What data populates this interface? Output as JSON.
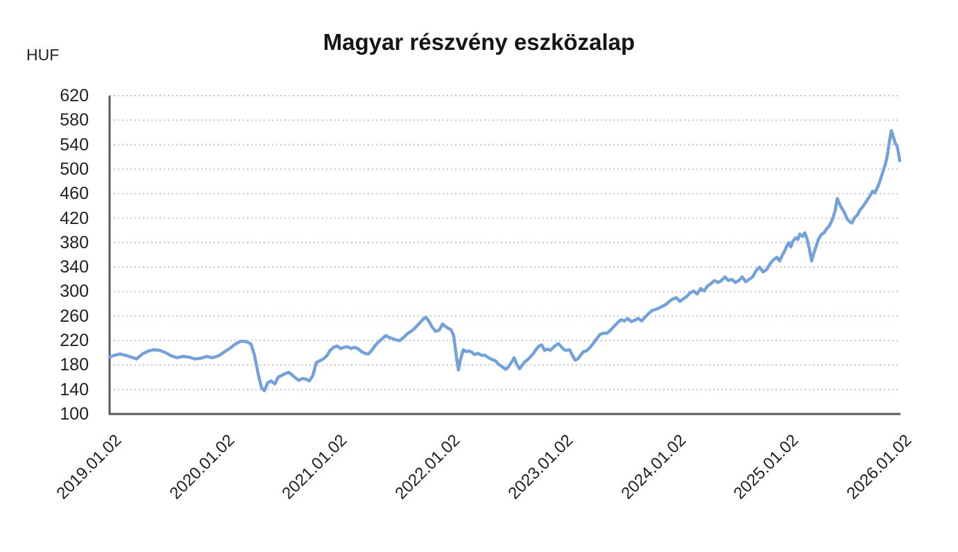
{
  "title": "Magyar részvény eszközalap",
  "y_axis": {
    "unit_label": "HUF",
    "ticks": [
      620,
      580,
      540,
      500,
      460,
      420,
      380,
      340,
      300,
      260,
      220,
      180,
      140,
      100
    ]
  },
  "x_axis": {
    "ticks": [
      "2019.01.02",
      "2020.01.02",
      "2021.01.02",
      "2022.01.02",
      "2023.01.02",
      "2024.01.02",
      "2025.01.02",
      "2026.01.02"
    ]
  },
  "colors": {
    "line": "#74A1D8",
    "grid": "#c4c4c4",
    "axis": "#595959",
    "text": "#1f1f1f"
  },
  "chart_data": {
    "type": "line",
    "title": "Magyar részvény eszközalap",
    "xlabel": "",
    "ylabel": "HUF",
    "ylim": [
      100,
      620
    ],
    "xlim": [
      2019.0,
      2026.08
    ],
    "grid": "horizontal-dotted",
    "legend_position": "none",
    "x_tick_labels": [
      "2019.01.02",
      "2020.01.02",
      "2021.01.02",
      "2022.01.02",
      "2023.01.02",
      "2024.01.02",
      "2025.01.02",
      "2026.01.02"
    ],
    "y_tick_values": [
      100,
      140,
      180,
      220,
      260,
      300,
      340,
      380,
      420,
      460,
      500,
      540,
      580,
      620
    ],
    "series": [
      {
        "name": "Magyar részvény eszközalap (HUF)",
        "color": "#74A1D8",
        "points": [
          [
            2019.0,
            193
          ],
          [
            2019.043,
            196
          ],
          [
            2019.092,
            198
          ],
          [
            2019.141,
            196
          ],
          [
            2019.191,
            193
          ],
          [
            2019.24,
            190
          ],
          [
            2019.289,
            198
          ],
          [
            2019.344,
            203
          ],
          [
            2019.393,
            205
          ],
          [
            2019.443,
            204
          ],
          [
            2019.498,
            200
          ],
          [
            2019.547,
            195
          ],
          [
            2019.596,
            192
          ],
          [
            2019.651,
            194
          ],
          [
            2019.701,
            193
          ],
          [
            2019.756,
            190
          ],
          [
            2019.805,
            191
          ],
          [
            2019.86,
            194
          ],
          [
            2019.91,
            192
          ],
          [
            2019.965,
            195
          ],
          [
            2020.014,
            201
          ],
          [
            2020.063,
            207
          ],
          [
            2020.112,
            214
          ],
          [
            2020.162,
            219
          ],
          [
            2020.217,
            218
          ],
          [
            2020.254,
            214
          ],
          [
            2020.284,
            196
          ],
          [
            2020.315,
            166
          ],
          [
            2020.346,
            143
          ],
          [
            2020.371,
            138
          ],
          [
            2020.401,
            151
          ],
          [
            2020.432,
            154
          ],
          [
            2020.463,
            149
          ],
          [
            2020.493,
            160
          ],
          [
            2020.524,
            163
          ],
          [
            2020.555,
            166
          ],
          [
            2020.586,
            168
          ],
          [
            2020.616,
            164
          ],
          [
            2020.647,
            159
          ],
          [
            2020.678,
            155
          ],
          [
            2020.709,
            158
          ],
          [
            2020.739,
            157
          ],
          [
            2020.77,
            154
          ],
          [
            2020.801,
            163
          ],
          [
            2020.831,
            184
          ],
          [
            2020.862,
            187
          ],
          [
            2020.893,
            190
          ],
          [
            2020.924,
            195
          ],
          [
            2020.954,
            204
          ],
          [
            2020.985,
            209
          ],
          [
            2021.016,
            211
          ],
          [
            2021.047,
            207
          ],
          [
            2021.077,
            209
          ],
          [
            2021.108,
            210
          ],
          [
            2021.139,
            207
          ],
          [
            2021.17,
            209
          ],
          [
            2021.2,
            207
          ],
          [
            2021.231,
            202
          ],
          [
            2021.262,
            199
          ],
          [
            2021.292,
            198
          ],
          [
            2021.323,
            204
          ],
          [
            2021.354,
            212
          ],
          [
            2021.385,
            218
          ],
          [
            2021.415,
            223
          ],
          [
            2021.446,
            228
          ],
          [
            2021.477,
            225
          ],
          [
            2021.508,
            223
          ],
          [
            2021.538,
            221
          ],
          [
            2021.569,
            220
          ],
          [
            2021.6,
            224
          ],
          [
            2021.63,
            230
          ],
          [
            2021.661,
            234
          ],
          [
            2021.692,
            238
          ],
          [
            2021.723,
            244
          ],
          [
            2021.753,
            250
          ],
          [
            2021.784,
            256
          ],
          [
            2021.802,
            258
          ],
          [
            2021.827,
            252
          ],
          [
            2021.858,
            242
          ],
          [
            2021.888,
            235
          ],
          [
            2021.919,
            237
          ],
          [
            2021.95,
            247
          ],
          [
            2021.975,
            243
          ],
          [
            2022.0,
            240
          ],
          [
            2022.024,
            238
          ],
          [
            2022.048,
            228
          ],
          [
            2022.073,
            193
          ],
          [
            2022.091,
            172
          ],
          [
            2022.11,
            190
          ],
          [
            2022.134,
            205
          ],
          [
            2022.159,
            202
          ],
          [
            2022.184,
            203
          ],
          [
            2022.208,
            201
          ],
          [
            2022.233,
            197
          ],
          [
            2022.264,
            199
          ],
          [
            2022.294,
            196
          ],
          [
            2022.325,
            196
          ],
          [
            2022.356,
            192
          ],
          [
            2022.387,
            189
          ],
          [
            2022.417,
            187
          ],
          [
            2022.448,
            181
          ],
          [
            2022.479,
            177
          ],
          [
            2022.509,
            173
          ],
          [
            2022.534,
            177
          ],
          [
            2022.559,
            184
          ],
          [
            2022.583,
            192
          ],
          [
            2022.608,
            181
          ],
          [
            2022.632,
            174
          ],
          [
            2022.657,
            180
          ],
          [
            2022.682,
            186
          ],
          [
            2022.706,
            189
          ],
          [
            2022.731,
            194
          ],
          [
            2022.755,
            199
          ],
          [
            2022.78,
            206
          ],
          [
            2022.804,
            211
          ],
          [
            2022.829,
            213
          ],
          [
            2022.854,
            204
          ],
          [
            2022.878,
            206
          ],
          [
            2022.903,
            204
          ],
          [
            2022.927,
            208
          ],
          [
            2022.952,
            212
          ],
          [
            2022.976,
            215
          ],
          [
            2023.001,
            210
          ],
          [
            2023.026,
            205
          ],
          [
            2023.05,
            204
          ],
          [
            2023.075,
            205
          ],
          [
            2023.099,
            196
          ],
          [
            2023.124,
            188
          ],
          [
            2023.148,
            190
          ],
          [
            2023.173,
            196
          ],
          [
            2023.198,
            202
          ],
          [
            2023.222,
            203
          ],
          [
            2023.247,
            207
          ],
          [
            2023.271,
            212
          ],
          [
            2023.296,
            218
          ],
          [
            2023.32,
            224
          ],
          [
            2023.345,
            230
          ],
          [
            2023.376,
            232
          ],
          [
            2023.407,
            232
          ],
          [
            2023.437,
            237
          ],
          [
            2023.468,
            243
          ],
          [
            2023.499,
            249
          ],
          [
            2023.53,
            254
          ],
          [
            2023.56,
            252
          ],
          [
            2023.591,
            256
          ],
          [
            2023.622,
            251
          ],
          [
            2023.652,
            253
          ],
          [
            2023.683,
            256
          ],
          [
            2023.714,
            252
          ],
          [
            2023.744,
            258
          ],
          [
            2023.775,
            264
          ],
          [
            2023.806,
            269
          ],
          [
            2023.837,
            271
          ],
          [
            2023.867,
            273
          ],
          [
            2023.898,
            276
          ],
          [
            2023.929,
            279
          ],
          [
            2023.96,
            284
          ],
          [
            2023.99,
            288
          ],
          [
            2024.021,
            290
          ],
          [
            2024.052,
            284
          ],
          [
            2024.082,
            288
          ],
          [
            2024.113,
            292
          ],
          [
            2024.144,
            298
          ],
          [
            2024.175,
            301
          ],
          [
            2024.205,
            296
          ],
          [
            2024.236,
            305
          ],
          [
            2024.267,
            301
          ],
          [
            2024.297,
            309
          ],
          [
            2024.328,
            313
          ],
          [
            2024.359,
            318
          ],
          [
            2024.39,
            315
          ],
          [
            2024.42,
            318
          ],
          [
            2024.451,
            324
          ],
          [
            2024.482,
            318
          ],
          [
            2024.512,
            320
          ],
          [
            2024.543,
            315
          ],
          [
            2024.574,
            318
          ],
          [
            2024.605,
            324
          ],
          [
            2024.635,
            316
          ],
          [
            2024.666,
            320
          ],
          [
            2024.697,
            324
          ],
          [
            2024.727,
            334
          ],
          [
            2024.758,
            340
          ],
          [
            2024.789,
            332
          ],
          [
            2024.82,
            336
          ],
          [
            2024.85,
            345
          ],
          [
            2024.881,
            352
          ],
          [
            2024.912,
            356
          ],
          [
            2024.937,
            350
          ],
          [
            2024.961,
            360
          ],
          [
            2024.98,
            366
          ],
          [
            2024.998,
            374
          ],
          [
            2025.017,
            380
          ],
          [
            2025.035,
            373
          ],
          [
            2025.053,
            382
          ],
          [
            2025.078,
            388
          ],
          [
            2025.097,
            385
          ],
          [
            2025.115,
            394
          ],
          [
            2025.14,
            390
          ],
          [
            2025.158,
            396
          ],
          [
            2025.176,
            388
          ],
          [
            2025.201,
            369
          ],
          [
            2025.219,
            350
          ],
          [
            2025.238,
            362
          ],
          [
            2025.256,
            372
          ],
          [
            2025.281,
            386
          ],
          [
            2025.305,
            393
          ],
          [
            2025.33,
            396
          ],
          [
            2025.355,
            403
          ],
          [
            2025.379,
            408
          ],
          [
            2025.404,
            418
          ],
          [
            2025.428,
            432
          ],
          [
            2025.447,
            452
          ],
          [
            2025.465,
            444
          ],
          [
            2025.484,
            437
          ],
          [
            2025.508,
            430
          ],
          [
            2025.533,
            419
          ],
          [
            2025.558,
            414
          ],
          [
            2025.576,
            412
          ],
          [
            2025.601,
            421
          ],
          [
            2025.625,
            425
          ],
          [
            2025.65,
            434
          ],
          [
            2025.674,
            439
          ],
          [
            2025.699,
            446
          ],
          [
            2025.724,
            453
          ],
          [
            2025.742,
            458
          ],
          [
            2025.76,
            464
          ],
          [
            2025.779,
            461
          ],
          [
            2025.797,
            468
          ],
          [
            2025.816,
            476
          ],
          [
            2025.834,
            486
          ],
          [
            2025.853,
            497
          ],
          [
            2025.871,
            507
          ],
          [
            2025.889,
            521
          ],
          [
            2025.908,
            544
          ],
          [
            2025.926,
            563
          ],
          [
            2025.938,
            556
          ],
          [
            2025.951,
            548
          ],
          [
            2025.963,
            541
          ],
          [
            2025.975,
            539
          ],
          [
            2025.988,
            528
          ],
          [
            2026.0,
            514
          ]
        ]
      }
    ]
  }
}
